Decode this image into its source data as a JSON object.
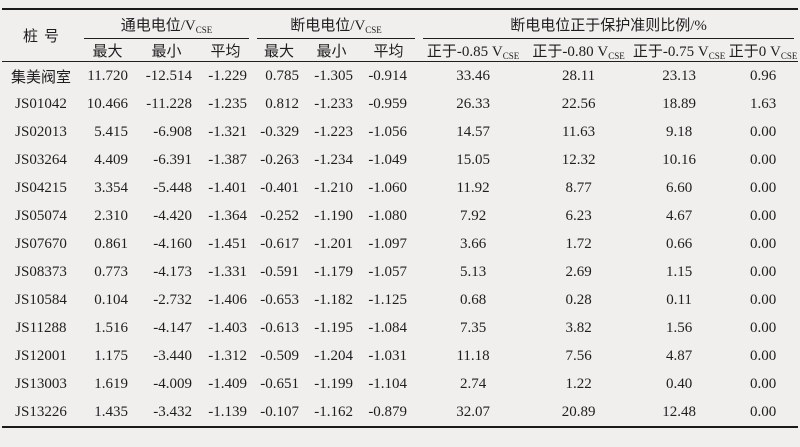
{
  "table": {
    "pile_header": "桩号",
    "groups": {
      "on_potential": {
        "text": "通电电位/V",
        "sub": "CSE"
      },
      "off_potential": {
        "text": "断电电位/V",
        "sub": "CSE"
      },
      "ratio": {
        "text": "断电电位正于保护准则比例/%"
      }
    },
    "subheaders": {
      "on_max": "最大",
      "on_min": "最小",
      "on_avg": "平均",
      "off_max": "最大",
      "off_min": "最小",
      "off_avg": "平均",
      "ratio_085": {
        "text": "正于-0.85 V",
        "sub": "CSE"
      },
      "ratio_080": {
        "text": "正于-0.80 V",
        "sub": "CSE"
      },
      "ratio_075": {
        "text": "正于-0.75 V",
        "sub": "CSE"
      },
      "ratio_0": {
        "text": "正于0 V",
        "sub": "CSE"
      }
    },
    "rows": [
      {
        "id": "集美阀室",
        "values": [
          "11.720",
          "-12.514",
          "-1.229",
          "0.785",
          "-1.305",
          "-0.914",
          "33.46",
          "28.11",
          "23.13",
          "0.96"
        ]
      },
      {
        "id": "JS01042",
        "values": [
          "10.466",
          "-11.228",
          "-1.235",
          "0.812",
          "-1.233",
          "-0.959",
          "26.33",
          "22.56",
          "18.89",
          "1.63"
        ]
      },
      {
        "id": "JS02013",
        "values": [
          "5.415",
          "-6.908",
          "-1.321",
          "-0.329",
          "-1.223",
          "-1.056",
          "14.57",
          "11.63",
          "9.18",
          "0.00"
        ]
      },
      {
        "id": "JS03264",
        "values": [
          "4.409",
          "-6.391",
          "-1.387",
          "-0.263",
          "-1.234",
          "-1.049",
          "15.05",
          "12.32",
          "10.16",
          "0.00"
        ]
      },
      {
        "id": "JS04215",
        "values": [
          "3.354",
          "-5.448",
          "-1.401",
          "-0.401",
          "-1.210",
          "-1.060",
          "11.92",
          "8.77",
          "6.60",
          "0.00"
        ]
      },
      {
        "id": "JS05074",
        "values": [
          "2.310",
          "-4.420",
          "-1.364",
          "-0.252",
          "-1.190",
          "-1.080",
          "7.92",
          "6.23",
          "4.67",
          "0.00"
        ]
      },
      {
        "id": "JS07670",
        "values": [
          "0.861",
          "-4.160",
          "-1.451",
          "-0.617",
          "-1.201",
          "-1.097",
          "3.66",
          "1.72",
          "0.66",
          "0.00"
        ]
      },
      {
        "id": "JS08373",
        "values": [
          "0.773",
          "-4.173",
          "-1.331",
          "-0.591",
          "-1.179",
          "-1.057",
          "5.13",
          "2.69",
          "1.15",
          "0.00"
        ]
      },
      {
        "id": "JS10584",
        "values": [
          "0.104",
          "-2.732",
          "-1.406",
          "-0.653",
          "-1.182",
          "-1.125",
          "0.68",
          "0.28",
          "0.11",
          "0.00"
        ]
      },
      {
        "id": "JS11288",
        "values": [
          "1.516",
          "-4.147",
          "-1.403",
          "-0.613",
          "-1.195",
          "-1.084",
          "7.35",
          "3.82",
          "1.56",
          "0.00"
        ]
      },
      {
        "id": "JS12001",
        "values": [
          "1.175",
          "-3.440",
          "-1.312",
          "-0.509",
          "-1.204",
          "-1.031",
          "11.18",
          "7.56",
          "4.87",
          "0.00"
        ]
      },
      {
        "id": "JS13003",
        "values": [
          "1.619",
          "-4.009",
          "-1.409",
          "-0.651",
          "-1.199",
          "-1.104",
          "2.74",
          "1.22",
          "0.40",
          "0.00"
        ]
      },
      {
        "id": "JS13226",
        "values": [
          "1.435",
          "-3.432",
          "-1.139",
          "-0.107",
          "-1.162",
          "-0.879",
          "32.07",
          "20.89",
          "12.48",
          "0.00"
        ]
      }
    ]
  }
}
